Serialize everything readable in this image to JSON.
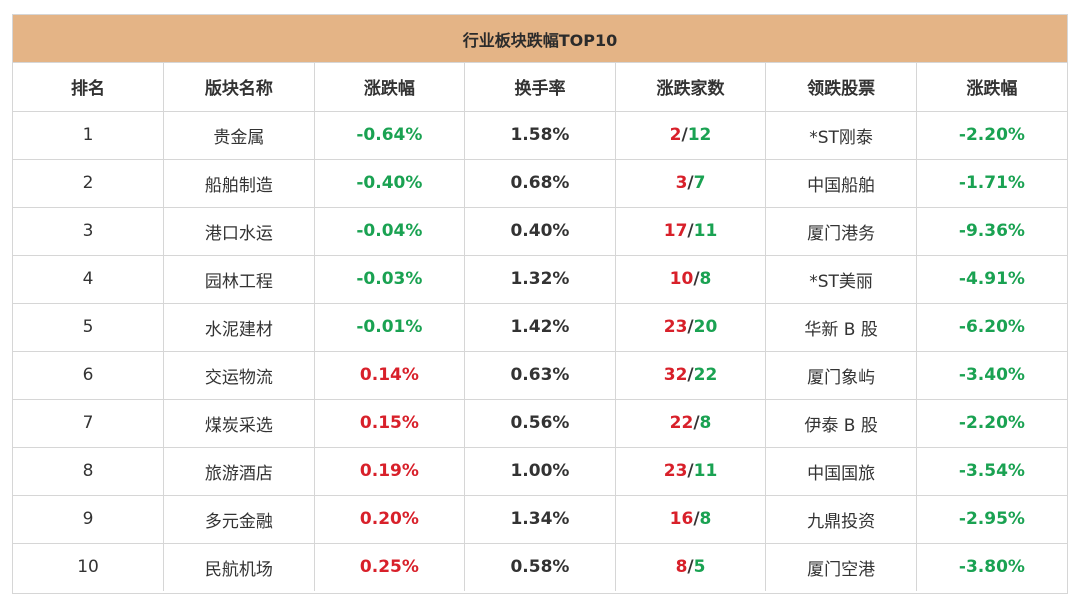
{
  "title": "行业板块跌幅TOP10",
  "colors": {
    "header_bg": "#e4b486",
    "rise": "#d8202a",
    "fall": "#1aa252",
    "border": "#d6d6d6"
  },
  "columns": [
    "排名",
    "版块名称",
    "涨跌幅",
    "换手率",
    "涨跌家数",
    "领跌股票",
    "涨跌幅"
  ],
  "rows": [
    {
      "rank": "1",
      "sector": "贵金属",
      "change": "-0.64%",
      "change_dir": "down",
      "turnover": "1.58%",
      "up_count": "2",
      "down_count": "12",
      "leader": "*ST刚泰",
      "leader_change": "-2.20%"
    },
    {
      "rank": "2",
      "sector": "船舶制造",
      "change": "-0.40%",
      "change_dir": "down",
      "turnover": "0.68%",
      "up_count": "3",
      "down_count": "7",
      "leader": "中国船舶",
      "leader_change": "-1.71%"
    },
    {
      "rank": "3",
      "sector": "港口水运",
      "change": "-0.04%",
      "change_dir": "down",
      "turnover": "0.40%",
      "up_count": "17",
      "down_count": "11",
      "leader": "厦门港务",
      "leader_change": "-9.36%"
    },
    {
      "rank": "4",
      "sector": "园林工程",
      "change": "-0.03%",
      "change_dir": "down",
      "turnover": "1.32%",
      "up_count": "10",
      "down_count": "8",
      "leader": "*ST美丽",
      "leader_change": "-4.91%"
    },
    {
      "rank": "5",
      "sector": "水泥建材",
      "change": "-0.01%",
      "change_dir": "down",
      "turnover": "1.42%",
      "up_count": "23",
      "down_count": "20",
      "leader": "华新 B 股",
      "leader_change": "-6.20%"
    },
    {
      "rank": "6",
      "sector": "交运物流",
      "change": "0.14%",
      "change_dir": "up",
      "turnover": "0.63%",
      "up_count": "32",
      "down_count": "22",
      "leader": "厦门象屿",
      "leader_change": "-3.40%"
    },
    {
      "rank": "7",
      "sector": "煤炭采选",
      "change": "0.15%",
      "change_dir": "up",
      "turnover": "0.56%",
      "up_count": "22",
      "down_count": "8",
      "leader": "伊泰 B 股",
      "leader_change": "-2.20%"
    },
    {
      "rank": "8",
      "sector": "旅游酒店",
      "change": "0.19%",
      "change_dir": "up",
      "turnover": "1.00%",
      "up_count": "23",
      "down_count": "11",
      "leader": "中国国旅",
      "leader_change": "-3.54%"
    },
    {
      "rank": "9",
      "sector": "多元金融",
      "change": "0.20%",
      "change_dir": "up",
      "turnover": "1.34%",
      "up_count": "16",
      "down_count": "8",
      "leader": "九鼎投资",
      "leader_change": "-2.95%"
    },
    {
      "rank": "10",
      "sector": "民航机场",
      "change": "0.25%",
      "change_dir": "up",
      "turnover": "0.58%",
      "up_count": "8",
      "down_count": "5",
      "leader": "厦门空港",
      "leader_change": "-3.80%"
    }
  ]
}
